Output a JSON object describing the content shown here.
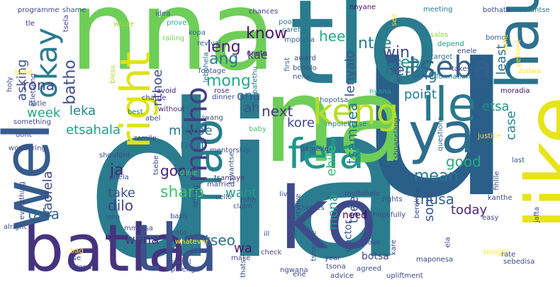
{
  "words": [
    {
      "text": "dia",
      "color": "#2b7c8e"
    },
    {
      "text": "u",
      "color": "#2a5f8a"
    },
    {
      "text": "nna",
      "color": "#6ece58"
    },
    {
      "text": "tlo",
      "color": "#2a7b8e"
    },
    {
      "text": "na",
      "color": "#6ece58"
    },
    {
      "text": "ko",
      "color": "#3e4a89"
    },
    {
      "text": "like",
      "color": "#e7e419"
    },
    {
      "text": "batla",
      "color": "#46337e"
    },
    {
      "text": "tla",
      "color": "#3b528b"
    },
    {
      "text": "wel",
      "color": "#365c8d"
    },
    {
      "text": "hau",
      "color": "#2c728e"
    },
    {
      "text": "ya",
      "color": "#2e6e8e"
    },
    {
      "text": "ile",
      "color": "#2a788e"
    },
    {
      "text": "hao",
      "color": "#287d8e"
    },
    {
      "text": "right",
      "color": "#dde318"
    },
    {
      "text": "fela",
      "color": "#1f988b"
    },
    {
      "text": "keng",
      "color": "#b8de29"
    },
    {
      "text": "motho",
      "color": "#423f85"
    },
    {
      "text": "tseba",
      "color": "#355f8d"
    },
    {
      "text": "okay",
      "color": "#287c8e"
    },
    {
      "text": "know",
      "color": "#481668"
    },
    {
      "text": "leng",
      "color": "#481f70"
    },
    {
      "text": "ang",
      "color": "#297a8e"
    },
    {
      "text": "mong",
      "color": "#25ab82"
    },
    {
      "text": "batho",
      "color": "#3d4d8a"
    },
    {
      "text": "win",
      "color": "#3f4788"
    },
    {
      "text": "oena",
      "color": "#2f6b8e"
    },
    {
      "text": "eo",
      "color": "#21918c"
    },
    {
      "text": "ntse",
      "color": "#25838e"
    },
    {
      "text": "kae",
      "color": "#453781"
    },
    {
      "text": "hee",
      "color": "#25ac82"
    },
    {
      "text": "rona",
      "color": "#433e85"
    },
    {
      "text": "asking",
      "color": "#3d4e8a"
    },
    {
      "text": "nthoe",
      "color": "#3b518b"
    },
    {
      "text": "lenyalo",
      "color": "#3b528b"
    },
    {
      "text": "least",
      "color": "#2e6f8e"
    },
    {
      "text": "ona",
      "color": "#365d8d"
    },
    {
      "text": "point",
      "color": "#2a788e"
    },
    {
      "text": "teng",
      "color": "#2c738e"
    },
    {
      "text": "ah",
      "color": "#3a548c"
    },
    {
      "text": "next",
      "color": "#443983"
    },
    {
      "text": "etsa",
      "color": "#20938c"
    },
    {
      "text": "week",
      "color": "#22a884"
    },
    {
      "text": "leka",
      "color": "#25848e"
    },
    {
      "text": "etsahala",
      "color": "#1fa088"
    },
    {
      "text": "maybe",
      "color": "#2b748e"
    },
    {
      "text": "kore",
      "color": "#3f4889"
    },
    {
      "text": "case",
      "color": "#23898e"
    },
    {
      "text": "neh",
      "color": "#2f6c8e"
    },
    {
      "text": "good",
      "color": "#26ad81"
    },
    {
      "text": "mean",
      "color": "#2a768e"
    },
    {
      "text": "ebile",
      "color": "#3bbb75"
    },
    {
      "text": "tsamaea",
      "color": "#2a788e"
    },
    {
      "text": "ja",
      "color": "#482475"
    },
    {
      "text": "gon",
      "color": "#482173"
    },
    {
      "text": "take",
      "color": "#3b528b"
    },
    {
      "text": "dilo",
      "color": "#414487"
    },
    {
      "text": "sharp",
      "color": "#44bf70"
    },
    {
      "text": "want",
      "color": "#1f998a"
    },
    {
      "text": "kaofela",
      "color": "#3e4989"
    },
    {
      "text": "taba",
      "color": "#2f6c8e"
    },
    {
      "text": "mona",
      "color": "#1f9e89"
    },
    {
      "text": "thusa",
      "color": "#34618d"
    },
    {
      "text": "today",
      "color": "#482878"
    },
    {
      "text": "sorry",
      "color": "#39558c"
    },
    {
      "text": "tsee",
      "color": "#3b528b"
    },
    {
      "text": "wena",
      "color": "#46337e"
    },
    {
      "text": "tseo",
      "color": "#2c728e"
    },
    {
      "text": "wa",
      "color": "#481467"
    },
    {
      "text": "need",
      "color": "#440154"
    },
    {
      "text": "doctor",
      "color": "#3b528b"
    },
    {
      "text": "botsa",
      "color": "#3e4a89"
    },
    {
      "text": "programme",
      "color": "#414487"
    },
    {
      "text": "shame",
      "color": "#38598c"
    },
    {
      "text": "tsela",
      "color": "#3e4989"
    },
    {
      "text": "tle",
      "color": "#46307e"
    },
    {
      "text": "whole",
      "color": "#aadc32"
    },
    {
      "text": "idea",
      "color": "#38598c"
    },
    {
      "text": "prove",
      "color": "#29af7f"
    },
    {
      "text": "chances",
      "color": "#453882"
    },
    {
      "text": "poor",
      "color": "#2a788e"
    },
    {
      "text": "careful",
      "color": "#2b758e"
    },
    {
      "text": "mpolella",
      "color": "#31668e"
    },
    {
      "text": "nnyane",
      "color": "#471164"
    },
    {
      "text": "meeting",
      "color": "#287c8e"
    },
    {
      "text": "bothata",
      "color": "#3e4a89"
    },
    {
      "text": "omantse",
      "color": "#2a768e"
    },
    {
      "text": "kopa",
      "color": "#31688e"
    },
    {
      "text": "railing",
      "color": "#73d056"
    },
    {
      "text": "nnete",
      "color": "#481a6c"
    },
    {
      "text": "sales",
      "color": "#95d840"
    },
    {
      "text": "bomo",
      "color": "#34608d"
    },
    {
      "text": "depend",
      "color": "#1fa187"
    },
    {
      "text": "enele",
      "color": "#414487"
    },
    {
      "text": "target",
      "color": "#2e6e8e"
    },
    {
      "text": "ache",
      "color": "#fde725"
    },
    {
      "text": "percent",
      "color": "#fde725"
    },
    {
      "text": "zodwa",
      "color": "#fde725"
    },
    {
      "text": "oo",
      "color": "#1f948c"
    },
    {
      "text": "revival",
      "color": "#355e8d"
    },
    {
      "text": "award",
      "color": "#3e4a89"
    },
    {
      "text": "bonolo",
      "color": "#3b528b"
    },
    {
      "text": "nehe",
      "color": "#3b528b"
    },
    {
      "text": "information",
      "color": "#25838e"
    },
    {
      "text": "takes",
      "color": "#433e85"
    },
    {
      "text": "emails",
      "color": "#3e4989"
    },
    {
      "text": "footage",
      "color": "#39568c"
    },
    {
      "text": "rose",
      "color": "#472d7b"
    },
    {
      "text": "first",
      "color": "#2f6c8e"
    },
    {
      "text": "bafethu",
      "color": "#2a778e"
    },
    {
      "text": "lebohela",
      "color": "#2d708e"
    },
    {
      "text": "bless",
      "color": "#a8db34"
    },
    {
      "text": "charge",
      "color": "#453781"
    },
    {
      "text": "avoid",
      "color": "#471365"
    },
    {
      "text": "dinner",
      "color": "#3e4989"
    },
    {
      "text": "hopotsa",
      "color": "#34608d"
    },
    {
      "text": "nyana",
      "color": "#20a386"
    },
    {
      "text": "day",
      "color": "#3a548c"
    },
    {
      "text": "moradia",
      "color": "#471063"
    },
    {
      "text": "blind",
      "color": "#fde725"
    },
    {
      "text": "holy",
      "color": "#3e4a89"
    },
    {
      "text": "etletseng",
      "color": "#3b528b"
    },
    {
      "text": "batle",
      "color": "#3b528b"
    },
    {
      "text": "best",
      "color": "#2c738e"
    },
    {
      "text": "without",
      "color": "#482576"
    },
    {
      "text": "abel",
      "color": "#3e4a89"
    },
    {
      "text": "something",
      "color": "#3e4a89"
    },
    {
      "text": "jwang",
      "color": "#3b528b"
    },
    {
      "text": "baby",
      "color": "#46c06f"
    },
    {
      "text": "mpolelletse",
      "color": "#27808e"
    },
    {
      "text": "tshoanelang",
      "color": "#3b528b"
    },
    {
      "text": "questions",
      "color": "#31688e"
    },
    {
      "text": "justice",
      "color": "#fde725"
    },
    {
      "text": "dont",
      "color": "#3e4a89"
    },
    {
      "text": "wondering",
      "color": "#3e4a89"
    },
    {
      "text": "zamile",
      "color": "#3e4a89"
    },
    {
      "text": "mentorship",
      "color": "#3b528b"
    },
    {
      "text": "tlameile",
      "color": "#3e4a89"
    },
    {
      "text": "shouldnt",
      "color": "#3e4a89"
    },
    {
      "text": "clinic",
      "color": "#5ec962"
    },
    {
      "text": "tswantse",
      "color": "#3b528b"
    },
    {
      "text": "last",
      "color": "#3b528b"
    },
    {
      "text": "fihlile",
      "color": "#3b528b"
    },
    {
      "text": "kanthe",
      "color": "#3e4a89"
    },
    {
      "text": "tsebe",
      "color": "#3b528b"
    },
    {
      "text": "phela",
      "color": "#3e4a89"
    },
    {
      "text": "tsamaye",
      "color": "#46327e"
    },
    {
      "text": "married",
      "color": "#3e4a89"
    },
    {
      "text": "sello",
      "color": "#3b528b"
    },
    {
      "text": "mhh",
      "color": "#3e4a89"
    },
    {
      "text": "berekisa",
      "color": "#3e4a89"
    },
    {
      "text": "everything",
      "color": "#3e4a89"
    },
    {
      "text": "alright",
      "color": "#3b528b"
    },
    {
      "text": "live",
      "color": "#3b528b"
    },
    {
      "text": "rights",
      "color": "#3e4a89"
    },
    {
      "text": "motlohele",
      "color": "#3e4a89"
    },
    {
      "text": "care",
      "color": "#3e4a89"
    },
    {
      "text": "easy",
      "color": "#3b528b"
    },
    {
      "text": "jafta",
      "color": "#3b528b"
    },
    {
      "text": "lena",
      "color": "#3b528b"
    },
    {
      "text": "bash",
      "color": "#3e4a89"
    },
    {
      "text": "thirtyfive",
      "color": "#3e4a89"
    },
    {
      "text": "choices",
      "color": "#3e4a89"
    },
    {
      "text": "hopefully",
      "color": "#3e4a89"
    },
    {
      "text": "mmotsa",
      "color": "#3e4a89"
    },
    {
      "text": "ill",
      "color": "#3b528b"
    },
    {
      "text": "leoto",
      "color": "#3e4a89"
    },
    {
      "text": "whatever",
      "color": "#fde725"
    },
    {
      "text": "tshantse",
      "color": "#3e4a89"
    },
    {
      "text": "koloi",
      "color": "#3e4a89"
    },
    {
      "text": "bad",
      "color": "#fde725"
    },
    {
      "text": "ise",
      "color": "#3e4a89"
    },
    {
      "text": "friend",
      "color": "#3e4a89"
    },
    {
      "text": "make",
      "color": "#3e4a89"
    },
    {
      "text": "tonight",
      "color": "#fde725"
    },
    {
      "text": "rate",
      "color": "#3e4a89"
    },
    {
      "text": "ela",
      "color": "#3e4a89"
    },
    {
      "text": "maponesa",
      "color": "#3e4a89"
    },
    {
      "text": "sebedisa",
      "color": "#3e4a89"
    },
    {
      "text": "social",
      "color": "#3e4a89"
    },
    {
      "text": "puleng",
      "color": "#3e4a89"
    },
    {
      "text": "year",
      "color": "#3e4a89"
    },
    {
      "text": "tsona",
      "color": "#3e4a89"
    },
    {
      "text": "agreed",
      "color": "#3e4a89"
    },
    {
      "text": "kare",
      "color": "#3e4a89"
    },
    {
      "text": "ngwana",
      "color": "#3e4a89"
    },
    {
      "text": "ene",
      "color": "#3e4a89"
    },
    {
      "text": "advice",
      "color": "#3e4a89"
    },
    {
      "text": "upliftment",
      "color": "#3e4a89"
    },
    {
      "text": "check",
      "color": "#3e4a89"
    },
    {
      "text": "thats",
      "color": "#3e4a89"
    },
    {
      "text": "ntlung",
      "color": "#3e4a89"
    },
    {
      "text": "claim",
      "color": "#3e4a89"
    },
    {
      "text": "see",
      "color": "#fde725"
    },
    {
      "text": "way",
      "color": "#3e4a89"
    }
  ]
}
